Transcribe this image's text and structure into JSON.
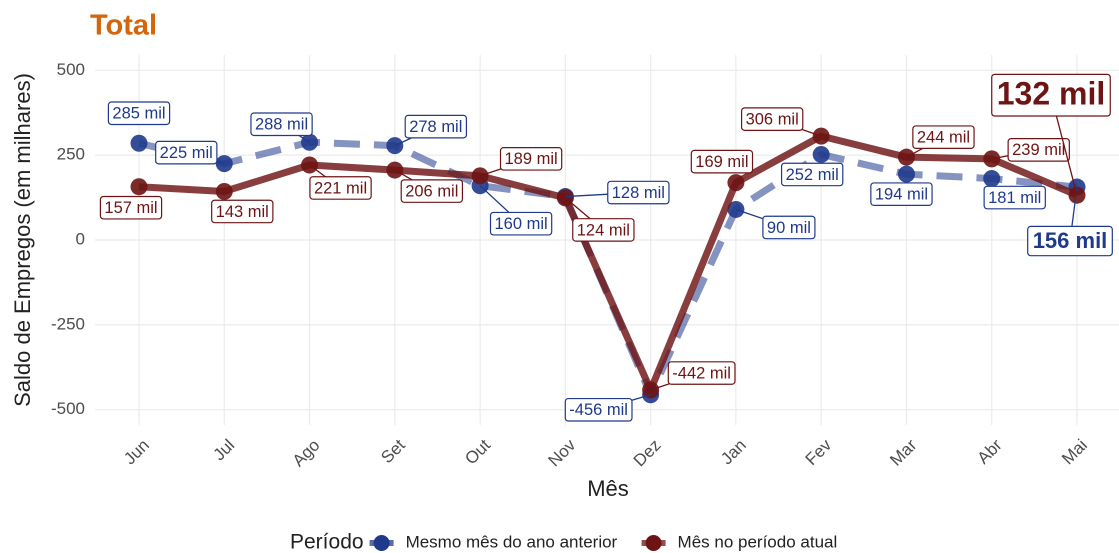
{
  "chart_data": {
    "type": "line",
    "title": "Total",
    "x_label": "Mês",
    "y_label": "Saldo de Empregos (em milhares)",
    "categories": [
      "Jun",
      "Jul",
      "Ago",
      "Set",
      "Out",
      "Nov",
      "Dez",
      "Jan",
      "Fev",
      "Mar",
      "Abr",
      "Mai"
    ],
    "ylim": [
      -545,
      545
    ],
    "yticks": [
      500,
      250,
      0,
      -250,
      -500
    ],
    "grid": true,
    "legend_title": "Período",
    "legend_position": "bottom",
    "series": [
      {
        "name": "Mesmo mês do ano anterior",
        "color": "#1f3a8c",
        "dashed": true,
        "values": [
          285,
          225,
          288,
          278,
          160,
          128,
          -456,
          90,
          252,
          194,
          181,
          156
        ],
        "value_labels": [
          "285 mil",
          "225 mil",
          "288 mil",
          "278 mil",
          "160 mil",
          "128 mil",
          "-456 mil",
          "90 mil",
          "252 mil",
          "194 mil",
          "181 mil",
          "156 mil"
        ]
      },
      {
        "name": "Mês no período atual",
        "color": "#6e1414",
        "dashed": false,
        "values": [
          157,
          143,
          221,
          206,
          189,
          124,
          -442,
          169,
          306,
          244,
          239,
          132
        ],
        "value_labels": [
          "157 mil",
          "143 mil",
          "221 mil",
          "206 mil",
          "189 mil",
          "124 mil",
          "-442 mil",
          "169 mil",
          "306 mil",
          "244 mil",
          "239 mil",
          "132 mil"
        ]
      }
    ]
  }
}
